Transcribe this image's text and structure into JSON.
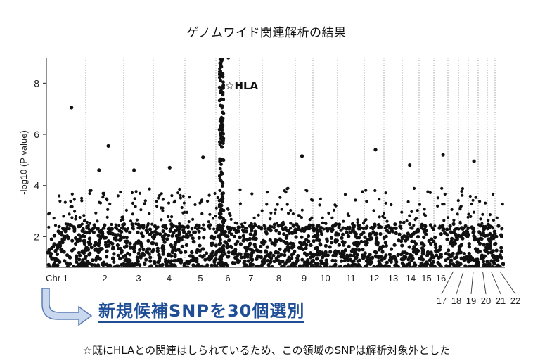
{
  "title": "ゲノムワイド関連解析の結果",
  "callout": "新規候補SNPを30個選別",
  "footnote": "☆既にHLAとの関連はしられているため、この領域のSNPは解析対象外とした",
  "colors": {
    "points": "#111111",
    "arrow_fill": "#c9d8ee",
    "arrow_stroke": "#5d7fb3",
    "callout": "#1f4d96"
  },
  "chart_data": {
    "type": "scatter",
    "title": "",
    "xlabel": "",
    "ylabel": "-log10 (P value)",
    "ylim": [
      0.8,
      9.0
    ],
    "yticks": [
      "2",
      "4",
      "6",
      "8"
    ],
    "xtick_labels": [
      "Chr 1",
      "2",
      "3",
      "4",
      "5",
      "6",
      "7",
      "8",
      "9",
      "10",
      "11",
      "12",
      "13",
      "14",
      "15",
      "16",
      "17",
      "18",
      "19",
      "20",
      "21",
      "22"
    ],
    "chromosomes": [
      1,
      2,
      3,
      4,
      5,
      6,
      7,
      8,
      9,
      10,
      11,
      12,
      13,
      14,
      15,
      16,
      17,
      18,
      19,
      20,
      21,
      22
    ],
    "annotation": {
      "text": "☆HLA",
      "chromosome": 6,
      "y": 7.9
    },
    "notable_peaks": [
      {
        "chromosome": 1,
        "y": 7.05
      },
      {
        "chromosome": 2,
        "y": 5.55
      },
      {
        "chromosome": 2,
        "y": 4.6
      },
      {
        "chromosome": 3,
        "y": 4.6
      },
      {
        "chromosome": 4,
        "y": 4.7
      },
      {
        "chromosome": 5,
        "y": 5.1
      },
      {
        "chromosome": 6,
        "y": 9.0
      },
      {
        "chromosome": 9,
        "y": 5.15
      },
      {
        "chromosome": 12,
        "y": 5.4
      },
      {
        "chromosome": 14,
        "y": 4.8
      },
      {
        "chromosome": 16,
        "y": 5.2
      },
      {
        "chromosome": 19,
        "y": 4.95
      }
    ]
  }
}
